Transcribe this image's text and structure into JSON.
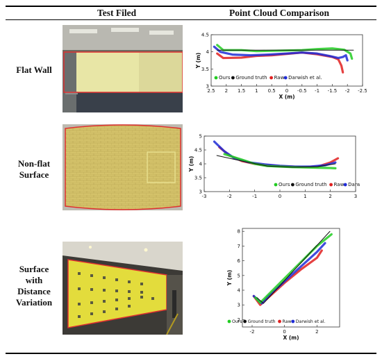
{
  "headers": {
    "col1": "Test Filed",
    "col2": "Point Cloud Comparison"
  },
  "rows": [
    {
      "label_lines": [
        "Flat Wall"
      ]
    },
    {
      "label_lines": [
        "Non-flat",
        "Surface"
      ]
    },
    {
      "label_lines": [
        "Surface",
        "with",
        "Distance",
        "Variation"
      ]
    }
  ],
  "colors": {
    "ours": "#22cc22",
    "ground_truth": "#111111",
    "raw": "#e02020",
    "darwish": "#1f2bd6",
    "outline": "#e03030"
  },
  "chart_data": [
    {
      "type": "scatter",
      "title": "",
      "xlabel": "X (m)",
      "ylabel": "Y (m)",
      "xlim": [
        2.5,
        -2.5
      ],
      "ylim": [
        3,
        4.5
      ],
      "xticks": [
        "2.5",
        "2",
        "1.5",
        "1",
        "0.5",
        "0",
        "-0.5",
        "-1",
        "-1.5",
        "-2",
        "-2.5"
      ],
      "yticks": [
        "3",
        "3.5",
        "4",
        "4.5"
      ],
      "legend": [
        "Ours",
        "Ground truth",
        "Raw",
        "Darwish et al."
      ],
      "legend_position": "bottom-left",
      "series": [
        {
          "name": "Ground truth",
          "x": [
            2.3,
            -2.2
          ],
          "y": [
            4.05,
            4.05
          ]
        },
        {
          "name": "Ours",
          "x": [
            2.3,
            2.1,
            1.5,
            1.0,
            0.5,
            0.0,
            -0.5,
            -1.0,
            -1.5,
            -1.9,
            -2.1,
            -2.15
          ],
          "y": [
            4.2,
            4.05,
            4.05,
            4.02,
            4.03,
            4.04,
            4.05,
            4.08,
            4.1,
            4.06,
            3.95,
            3.8
          ]
        },
        {
          "name": "Raw",
          "x": [
            2.3,
            2.1,
            1.5,
            1.0,
            0.5,
            0.0,
            -0.5,
            -1.0,
            -1.5,
            -1.7,
            -1.8,
            -1.85
          ],
          "y": [
            3.95,
            3.82,
            3.83,
            3.88,
            3.9,
            3.94,
            3.98,
            3.93,
            3.85,
            3.78,
            3.6,
            3.4
          ]
        },
        {
          "name": "Darwish et al.",
          "x": [
            2.4,
            2.2,
            1.8,
            1.2,
            0.6,
            0.0,
            -0.5,
            -1.0,
            -1.4,
            -1.7,
            -1.85,
            -1.95,
            -2.0
          ],
          "y": [
            4.15,
            4.0,
            3.92,
            3.9,
            3.92,
            3.95,
            3.98,
            3.95,
            3.88,
            3.82,
            3.85,
            3.9,
            3.75
          ]
        }
      ]
    },
    {
      "type": "scatter",
      "title": "",
      "xlabel": "",
      "ylabel": "Y (m)",
      "xlim": [
        -3,
        3
      ],
      "ylim": [
        3,
        5
      ],
      "xticks": [
        "-3",
        "-2",
        "-1",
        "0",
        "1",
        "2",
        "3"
      ],
      "yticks": [
        "3",
        "3.5",
        "4",
        "4.5",
        "5"
      ],
      "legend": [
        "Ours",
        "Ground truth",
        "Raw",
        "Darwish et al."
      ],
      "legend_position": "bottom-right",
      "series": [
        {
          "name": "Ground truth",
          "x": [
            -2.5,
            -1.5,
            -0.5,
            0.5,
            1.5,
            2.2
          ],
          "y": [
            4.3,
            4.1,
            3.92,
            3.88,
            3.9,
            4.0
          ]
        },
        {
          "name": "Ours",
          "x": [
            -2.2,
            -1.5,
            -1.0,
            -0.5,
            0.0,
            0.5,
            1.0,
            1.5,
            2.0,
            2.2
          ],
          "y": [
            4.35,
            4.15,
            4.0,
            3.92,
            3.9,
            3.88,
            3.87,
            3.86,
            3.85,
            3.84
          ]
        },
        {
          "name": "Raw",
          "x": [
            -2.4,
            -2.0,
            -1.5,
            -1.0,
            -0.5,
            0.0,
            0.5,
            1.0,
            1.5,
            2.0,
            2.3
          ],
          "y": [
            4.6,
            4.3,
            4.1,
            4.0,
            3.95,
            3.92,
            3.9,
            3.88,
            3.9,
            4.05,
            4.2
          ]
        },
        {
          "name": "Darwish et al.",
          "x": [
            -2.6,
            -2.2,
            -1.8,
            -1.2,
            -0.6,
            0.0,
            0.6,
            1.2,
            1.8,
            2.2
          ],
          "y": [
            4.8,
            4.45,
            4.2,
            4.05,
            3.98,
            3.93,
            3.9,
            3.9,
            3.95,
            4.05
          ]
        }
      ]
    },
    {
      "type": "scatter",
      "title": "",
      "xlabel": "X (m)",
      "ylabel": "Y (m)",
      "xlim": [
        -2.6,
        3.4
      ],
      "ylim": [
        1.5,
        8.2
      ],
      "xticks": [
        "-2",
        "0",
        "2"
      ],
      "xtick_values": [
        -2,
        0,
        2
      ],
      "yticks": [
        "2",
        "3",
        "4",
        "5",
        "6",
        "7",
        "8"
      ],
      "legend": [
        "Ours",
        "Ground truth",
        "Raw",
        "Darwish et al."
      ],
      "legend_position": "bottom",
      "series": [
        {
          "name": "Ground truth",
          "x": [
            -1.7,
            -1.3,
            2.8
          ],
          "y": [
            3.5,
            3.1,
            8.0
          ]
        },
        {
          "name": "Ours",
          "x": [
            -1.8,
            -1.5,
            -1.0,
            0.0,
            1.0,
            2.0,
            2.9
          ],
          "y": [
            3.5,
            3.15,
            3.7,
            4.8,
            5.9,
            7.0,
            7.8
          ]
        },
        {
          "name": "Raw",
          "x": [
            -1.9,
            -1.5,
            -1.0,
            0.0,
            1.0,
            2.0,
            2.3
          ],
          "y": [
            3.6,
            3.0,
            3.5,
            4.5,
            5.4,
            6.2,
            6.7
          ]
        },
        {
          "name": "Darwish et al.",
          "x": [
            -1.9,
            -1.4,
            -1.0,
            0.0,
            1.0,
            2.0,
            2.5
          ],
          "y": [
            3.6,
            3.1,
            3.6,
            4.6,
            5.6,
            6.6,
            7.2
          ]
        }
      ]
    }
  ]
}
